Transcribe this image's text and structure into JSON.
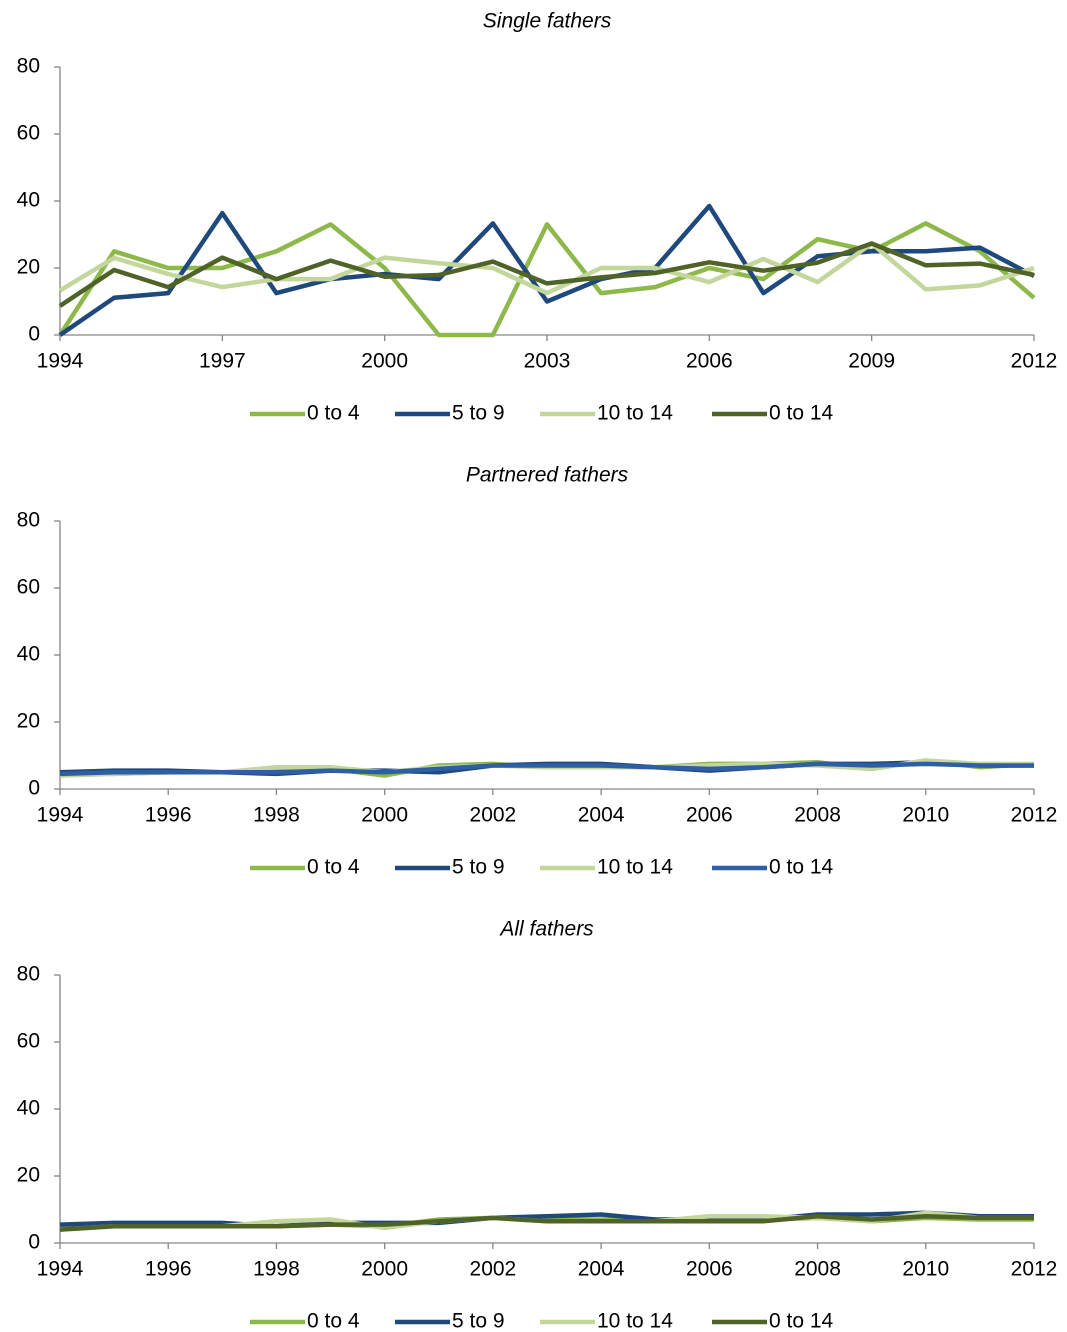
{
  "chart_data": [
    {
      "type": "line",
      "title": "Single fathers",
      "x": [
        1994,
        1995,
        1996,
        1997,
        1998,
        1999,
        2000,
        2001,
        2002,
        2003,
        2004,
        2005,
        2006,
        2007,
        2008,
        2009,
        2010,
        2011,
        2012
      ],
      "xlim": [
        1994,
        2012
      ],
      "xticks": [
        1994,
        1997,
        2000,
        2003,
        2006,
        2009,
        2012
      ],
      "ylim": [
        0,
        80
      ],
      "yticks": [
        0,
        20,
        40,
        60,
        80
      ],
      "series": [
        {
          "name": "0 to 4",
          "color": "#8db84a",
          "values": [
            0,
            25,
            20,
            20,
            25,
            33,
            20,
            0,
            0,
            33,
            12.5,
            14.3,
            20,
            16.7,
            28.6,
            25,
            33.3,
            25,
            11.1
          ]
        },
        {
          "name": "5 to 9",
          "color": "#1f497d",
          "values": [
            0,
            11.1,
            12.5,
            36.4,
            12.5,
            16.7,
            18.2,
            16.7,
            33.3,
            10,
            16.7,
            20,
            38.5,
            12.5,
            23.5,
            25,
            25,
            26.1,
            17.6
          ]
        },
        {
          "name": "10 to 14",
          "color": "#c3d69b",
          "values": [
            13.3,
            23,
            18.2,
            14.3,
            16.7,
            16.7,
            23.1,
            21.4,
            20,
            12.5,
            20,
            20,
            15.8,
            22.7,
            15.8,
            27.3,
            13.6,
            14.8,
            20
          ]
        },
        {
          "name": "0 to 14",
          "color": "#4f6228",
          "values": [
            8.7,
            19.4,
            14.3,
            23.1,
            16.7,
            22.2,
            17.4,
            17.9,
            21.9,
            15.4,
            17.2,
            18.5,
            21.7,
            19.2,
            21.6,
            27.3,
            20.8,
            21.3,
            17.9
          ]
        }
      ]
    },
    {
      "type": "line",
      "title": "Partnered fathers",
      "x": [
        1994,
        1995,
        1996,
        1997,
        1998,
        1999,
        2000,
        2001,
        2002,
        2003,
        2004,
        2005,
        2006,
        2007,
        2008,
        2009,
        2010,
        2011,
        2012
      ],
      "xlim": [
        1994,
        2012
      ],
      "xticks": [
        1994,
        1996,
        1998,
        2000,
        2002,
        2004,
        2006,
        2008,
        2010,
        2012
      ],
      "ylim": [
        0,
        80
      ],
      "yticks": [
        0,
        20,
        40,
        60,
        80
      ],
      "series": [
        {
          "name": "0 to 4",
          "color": "#8db84a",
          "values": [
            5,
            4.5,
            5,
            5,
            6,
            6,
            4,
            7,
            7.5,
            6.5,
            6.5,
            6.5,
            7.5,
            7.5,
            8,
            6,
            8.5,
            6.5,
            7.5
          ]
        },
        {
          "name": "5 to 9",
          "color": "#1f497d",
          "values": [
            5,
            5.5,
            5.5,
            5,
            4.5,
            5.5,
            5.5,
            5,
            7,
            7.5,
            7.5,
            6.5,
            5.5,
            6.5,
            7.5,
            7.5,
            8,
            7,
            7
          ]
        },
        {
          "name": "10 to 14",
          "color": "#c3d69b",
          "values": [
            4,
            4.5,
            5,
            5,
            6.5,
            6.5,
            5,
            6.5,
            7,
            6.5,
            6.5,
            6.5,
            7,
            7.5,
            7,
            6,
            8.5,
            7.5,
            7.5
          ]
        },
        {
          "name": "0 to 14",
          "color": "#2e5fa3",
          "values": [
            4.5,
            5,
            5,
            5,
            5,
            5.5,
            5,
            6,
            7,
            7,
            7,
            6.5,
            6,
            6.5,
            7.5,
            7,
            7.5,
            7,
            7
          ]
        }
      ]
    },
    {
      "type": "line",
      "title": "All fathers",
      "x": [
        1994,
        1995,
        1996,
        1997,
        1998,
        1999,
        2000,
        2001,
        2002,
        2003,
        2004,
        2005,
        2006,
        2007,
        2008,
        2009,
        2010,
        2011,
        2012
      ],
      "xlim": [
        1994,
        2012
      ],
      "xticks": [
        1994,
        1996,
        1998,
        2000,
        2002,
        2004,
        2006,
        2008,
        2010,
        2012
      ],
      "ylim": [
        0,
        80
      ],
      "yticks": [
        0,
        20,
        40,
        60,
        80
      ],
      "series": [
        {
          "name": "0 to 4",
          "color": "#8db84a",
          "values": [
            4.5,
            5,
            5,
            5,
            5,
            5.5,
            5,
            7,
            7.5,
            7,
            7,
            7,
            7,
            7,
            7.5,
            6.5,
            7.5,
            7,
            7
          ]
        },
        {
          "name": "5 to 9",
          "color": "#1f497d",
          "values": [
            5.5,
            6,
            6,
            6,
            5,
            6,
            6,
            6,
            7.5,
            8,
            8.5,
            7,
            7,
            7,
            8.5,
            8.5,
            9,
            8,
            8
          ]
        },
        {
          "name": "10 to 14",
          "color": "#c3d69b",
          "values": [
            4,
            5,
            5,
            5,
            6.5,
            7,
            4.5,
            6.5,
            7.5,
            6.5,
            6.5,
            6.5,
            8,
            8,
            7.5,
            6.5,
            9,
            7.5,
            7.5
          ]
        },
        {
          "name": "0 to 14",
          "color": "#4f6228",
          "values": [
            4,
            5,
            5,
            5,
            5,
            5.5,
            5.5,
            6.5,
            7.5,
            6.5,
            6.5,
            6.5,
            6.5,
            6.5,
            8,
            7,
            8,
            7.5,
            7.5
          ]
        }
      ]
    }
  ]
}
